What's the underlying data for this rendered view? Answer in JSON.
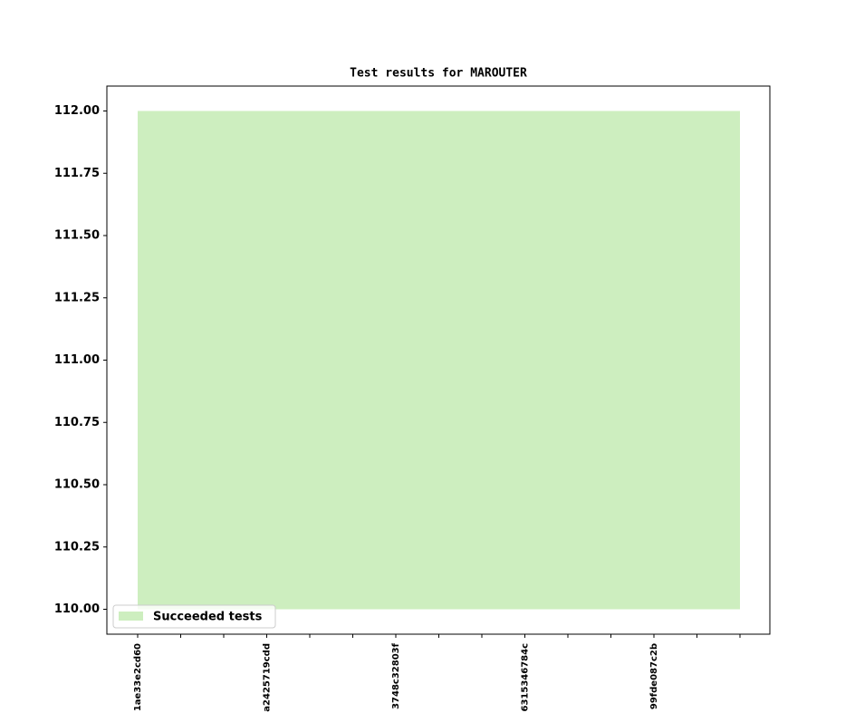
{
  "chart_data": {
    "type": "area",
    "title": "Test results for MAROUTER",
    "categories": [
      "1ae33e2cd60",
      null,
      null,
      "a2425719cdd",
      null,
      null,
      "3748c32803f",
      null,
      null,
      "6315346784c",
      null,
      null,
      "99fde087c2b",
      null,
      null
    ],
    "series": [
      {
        "name": "Succeeded tests",
        "color": "#cdeebf",
        "values": [
          112,
          112,
          112,
          112,
          112,
          112,
          112,
          112,
          112,
          112,
          112,
          112,
          112,
          112,
          112
        ],
        "lower_values": [
          110,
          110,
          110,
          110,
          110,
          110,
          110,
          110,
          110,
          110,
          110,
          110,
          110,
          110,
          110
        ]
      }
    ],
    "ylim": [
      109.9,
      112.1
    ],
    "yticks": [
      {
        "value": 110,
        "label": "110.00"
      },
      {
        "value": 110.25,
        "label": "110.25"
      },
      {
        "value": 110.5,
        "label": "110.50"
      },
      {
        "value": 110.75,
        "label": "110.75"
      },
      {
        "value": 111,
        "label": "111.00"
      },
      {
        "value": 111.25,
        "label": "111.25"
      },
      {
        "value": 111.5,
        "label": "111.50"
      },
      {
        "value": 111.75,
        "label": "111.75"
      },
      {
        "value": 112,
        "label": "112.00"
      }
    ],
    "legend": "lower left"
  }
}
